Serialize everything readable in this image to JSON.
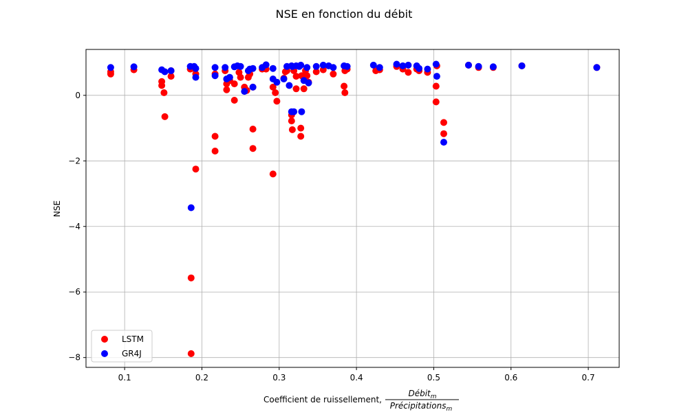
{
  "chart_data": {
    "type": "scatter",
    "title": "NSE en fonction du débit",
    "xlabel_prefix": "Coefficient de ruissellement,",
    "xlabel_fraction": {
      "numerator": "Débit",
      "numerator_sub": "m",
      "denominator": "Précipitations",
      "denominator_sub": "m"
    },
    "ylabel": "NSE",
    "xlim": [
      0.05,
      0.74
    ],
    "ylim": [
      -8.3,
      1.4
    ],
    "xticks": [
      0.1,
      0.2,
      0.3,
      0.4,
      0.5,
      0.6,
      0.7
    ],
    "xtick_labels": [
      "0.1",
      "0.2",
      "0.3",
      "0.4",
      "0.5",
      "0.6",
      "0.7"
    ],
    "yticks": [
      -8,
      -6,
      -4,
      -2,
      0
    ],
    "ytick_labels": [
      "−8",
      "−6",
      "−4",
      "−2",
      "0"
    ],
    "grid": true,
    "legend_position": "lower-left",
    "series": [
      {
        "name": "LSTM",
        "color": "#ff0000",
        "x": [
          0.082,
          0.082,
          0.112,
          0.148,
          0.148,
          0.151,
          0.152,
          0.16,
          0.16,
          0.185,
          0.186,
          0.186,
          0.19,
          0.192,
          0.192,
          0.217,
          0.217,
          0.217,
          0.23,
          0.232,
          0.232,
          0.236,
          0.242,
          0.242,
          0.248,
          0.25,
          0.255,
          0.258,
          0.26,
          0.262,
          0.266,
          0.266,
          0.266,
          0.278,
          0.283,
          0.292,
          0.292,
          0.295,
          0.297,
          0.306,
          0.308,
          0.31,
          0.316,
          0.316,
          0.317,
          0.319,
          0.322,
          0.322,
          0.328,
          0.328,
          0.329,
          0.332,
          0.334,
          0.336,
          0.338,
          0.348,
          0.357,
          0.37,
          0.384,
          0.385,
          0.385,
          0.388,
          0.425,
          0.43,
          0.452,
          0.46,
          0.467,
          0.478,
          0.481,
          0.492,
          0.503,
          0.503,
          0.504,
          0.513,
          0.513,
          0.545,
          0.558,
          0.577,
          0.614,
          0.711
        ],
        "y": [
          0.65,
          0.72,
          0.78,
          0.3,
          0.42,
          0.08,
          -0.65,
          0.58,
          0.75,
          0.8,
          -5.57,
          -7.88,
          0.82,
          -2.25,
          0.65,
          -1.25,
          -1.7,
          0.65,
          0.75,
          0.17,
          0.35,
          0.45,
          0.35,
          -0.15,
          0.7,
          0.55,
          0.25,
          0.15,
          0.55,
          0.65,
          -1.03,
          -1.62,
          0.25,
          0.8,
          0.8,
          0.25,
          -2.4,
          0.08,
          -0.18,
          0.52,
          0.72,
          0.75,
          -0.6,
          -0.78,
          -1.05,
          0.75,
          0.2,
          0.58,
          -1.0,
          -1.25,
          0.6,
          0.2,
          0.75,
          0.6,
          0.4,
          0.72,
          0.78,
          0.65,
          0.28,
          0.08,
          0.75,
          0.8,
          0.75,
          0.78,
          0.88,
          0.8,
          0.7,
          0.8,
          0.75,
          0.7,
          0.28,
          -0.2,
          0.9,
          -0.83,
          -1.17,
          0.92,
          0.85,
          0.85,
          0.9,
          0.85
        ]
      },
      {
        "name": "GR4J",
        "color": "#0000ff",
        "x": [
          0.082,
          0.112,
          0.148,
          0.152,
          0.16,
          0.185,
          0.186,
          0.19,
          0.192,
          0.192,
          0.217,
          0.217,
          0.23,
          0.232,
          0.236,
          0.242,
          0.246,
          0.25,
          0.255,
          0.26,
          0.262,
          0.266,
          0.266,
          0.278,
          0.283,
          0.292,
          0.292,
          0.297,
          0.306,
          0.31,
          0.313,
          0.316,
          0.316,
          0.317,
          0.319,
          0.322,
          0.326,
          0.328,
          0.329,
          0.332,
          0.336,
          0.338,
          0.348,
          0.357,
          0.364,
          0.37,
          0.384,
          0.388,
          0.422,
          0.43,
          0.452,
          0.46,
          0.467,
          0.478,
          0.481,
          0.492,
          0.503,
          0.504,
          0.513,
          0.545,
          0.558,
          0.577,
          0.614,
          0.711
        ],
        "y": [
          0.85,
          0.87,
          0.78,
          0.72,
          0.75,
          0.88,
          -3.43,
          0.88,
          0.55,
          0.82,
          0.6,
          0.85,
          0.85,
          0.5,
          0.55,
          0.87,
          0.9,
          0.88,
          0.12,
          0.75,
          0.8,
          0.25,
          0.82,
          0.85,
          0.93,
          0.5,
          0.82,
          0.4,
          0.5,
          0.88,
          0.3,
          -0.5,
          0.9,
          0.88,
          -0.5,
          0.9,
          0.88,
          0.92,
          -0.5,
          0.45,
          0.85,
          0.38,
          0.88,
          0.92,
          0.9,
          0.85,
          0.9,
          0.88,
          0.92,
          0.85,
          0.95,
          0.9,
          0.92,
          0.9,
          0.82,
          0.8,
          0.95,
          0.58,
          -1.43,
          0.92,
          0.88,
          0.87,
          0.9,
          0.85
        ]
      }
    ]
  }
}
